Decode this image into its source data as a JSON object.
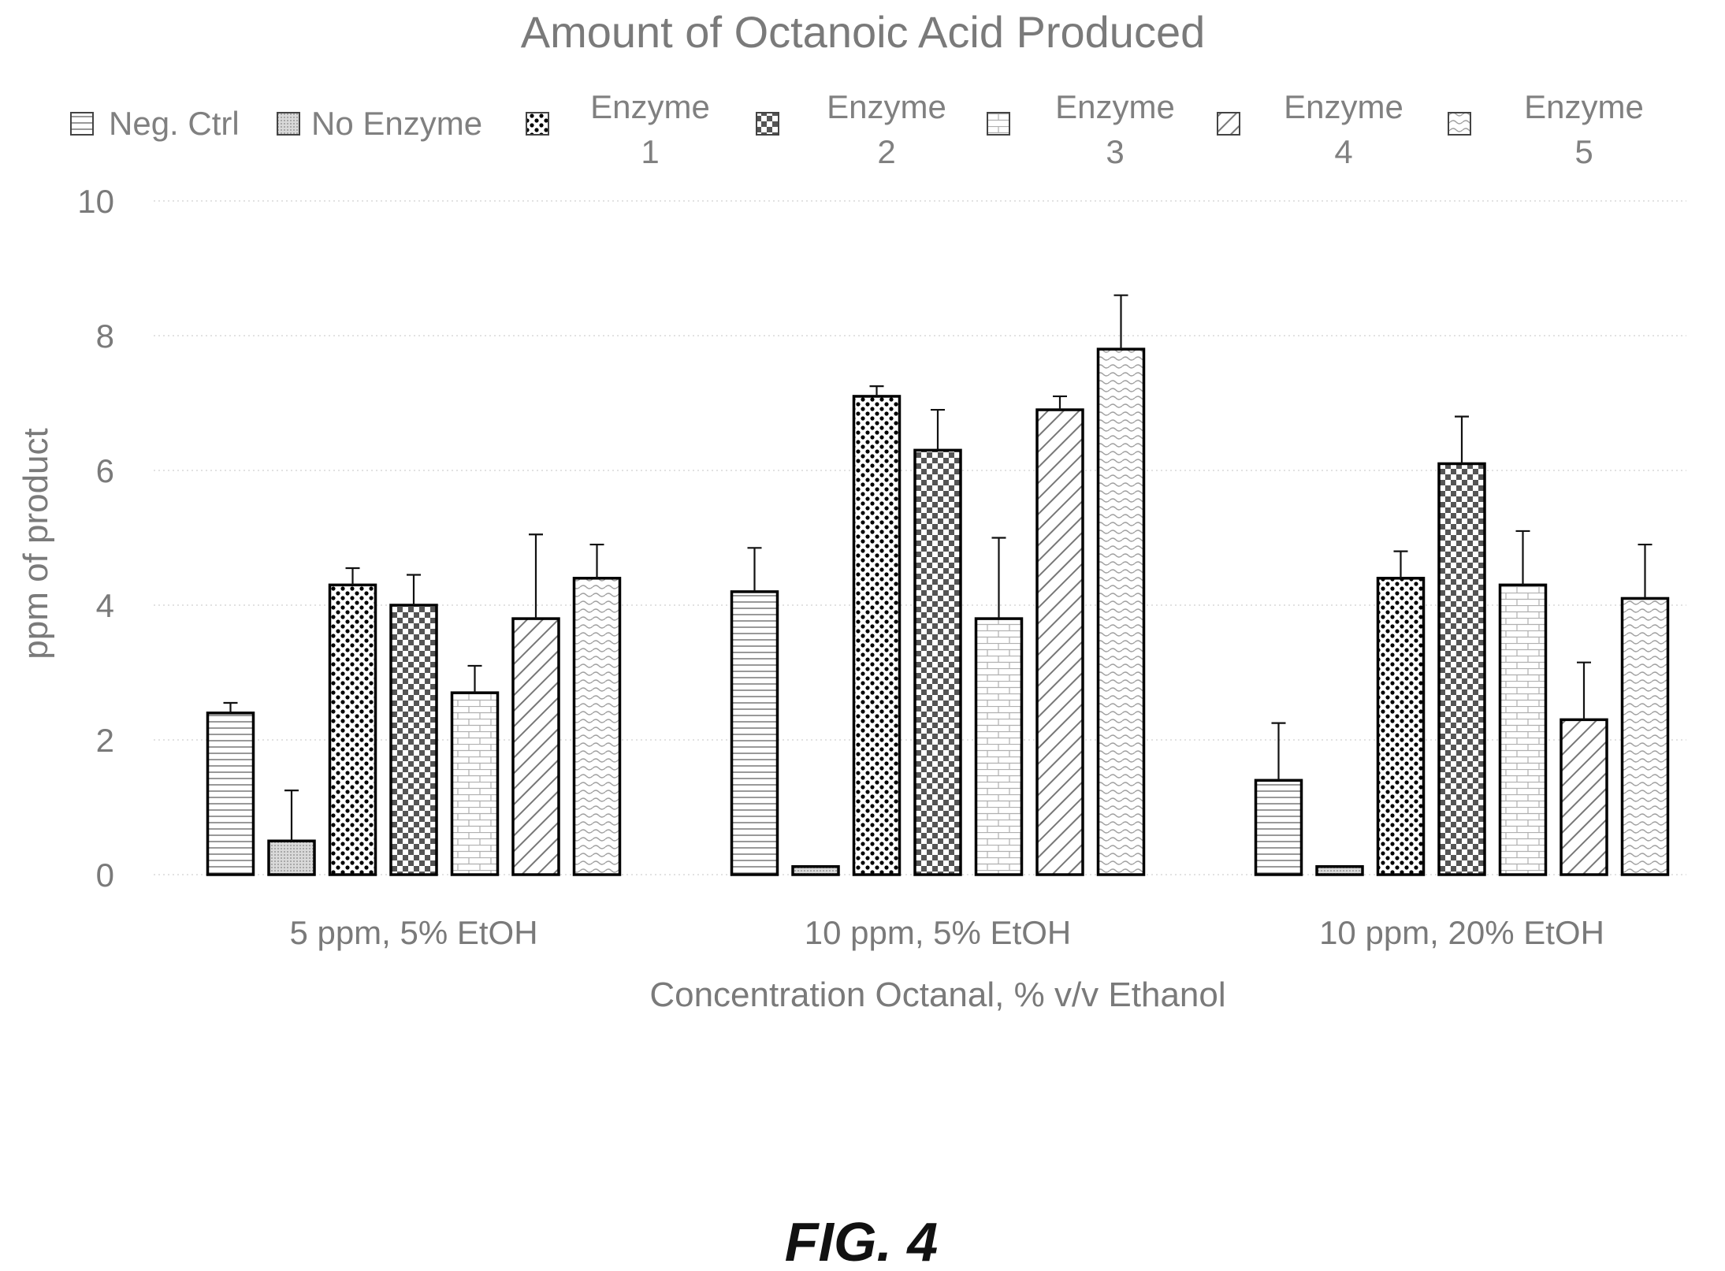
{
  "figure_label": "FIG. 4",
  "chart_data": {
    "type": "bar",
    "title": "Amount of Octanoic Acid Produced",
    "xlabel": "Concentration Octanal, % v/v Ethanol",
    "ylabel": "ppm of product",
    "ylim": [
      0,
      10
    ],
    "yticks": [
      0,
      2,
      4,
      6,
      8,
      10
    ],
    "grid": true,
    "legend_position": "top",
    "categories": [
      "5 ppm, 5% EtOH",
      "10 ppm, 5% EtOH",
      "10 ppm, 20% EtOH"
    ],
    "series": [
      {
        "name": "Neg. Ctrl",
        "legend": [
          "Neg. Ctrl"
        ],
        "pattern": "hlines",
        "values": [
          2.4,
          4.2,
          1.4
        ],
        "errors": [
          0.15,
          0.65,
          0.85
        ]
      },
      {
        "name": "No Enzyme",
        "legend": [
          "No Enzyme"
        ],
        "pattern": "finegray",
        "values": [
          0.5,
          0.12,
          0.12
        ],
        "errors": [
          0.75,
          0,
          0
        ]
      },
      {
        "name": "Enzyme 1",
        "legend": [
          "Enzyme",
          "1"
        ],
        "pattern": "dots",
        "values": [
          4.3,
          7.1,
          4.4
        ],
        "errors": [
          0.25,
          0.15,
          0.4
        ]
      },
      {
        "name": "Enzyme 2",
        "legend": [
          "Enzyme",
          "2"
        ],
        "pattern": "checker",
        "values": [
          4.0,
          6.3,
          6.1
        ],
        "errors": [
          0.45,
          0.6,
          0.7
        ]
      },
      {
        "name": "Enzyme 3",
        "legend": [
          "Enzyme",
          "3"
        ],
        "pattern": "brick",
        "values": [
          2.7,
          3.8,
          4.3
        ],
        "errors": [
          0.4,
          1.2,
          0.8
        ]
      },
      {
        "name": "Enzyme 4",
        "legend": [
          "Enzyme",
          "4"
        ],
        "pattern": "diag",
        "values": [
          3.8,
          6.9,
          2.3
        ],
        "errors": [
          1.25,
          0.2,
          0.85
        ]
      },
      {
        "name": "Enzyme 5",
        "legend": [
          "Enzyme",
          "5"
        ],
        "pattern": "wave",
        "values": [
          4.4,
          7.8,
          4.1
        ],
        "errors": [
          0.5,
          0.8,
          0.8
        ]
      }
    ]
  }
}
